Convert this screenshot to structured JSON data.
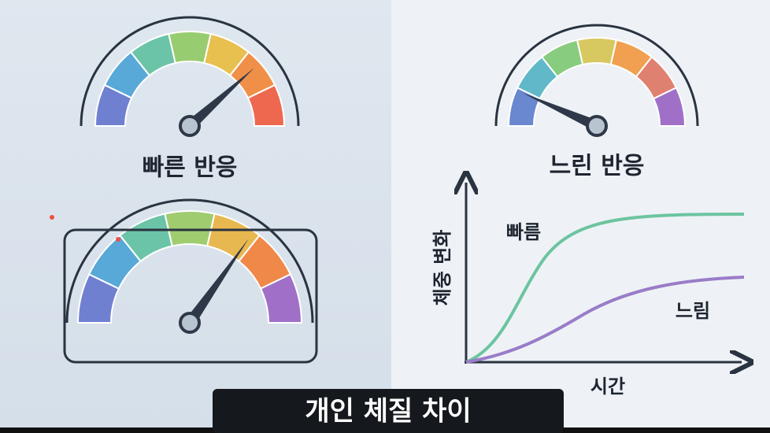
{
  "panels": {
    "fast": {
      "label": "빠른 반응"
    },
    "slow": {
      "label": "느린 반응"
    }
  },
  "graph": {
    "y_label": "체중 변화",
    "x_label": "시간",
    "fast_label": "빠름",
    "slow_label": "느림"
  },
  "caption": "개인 체질 차이"
}
